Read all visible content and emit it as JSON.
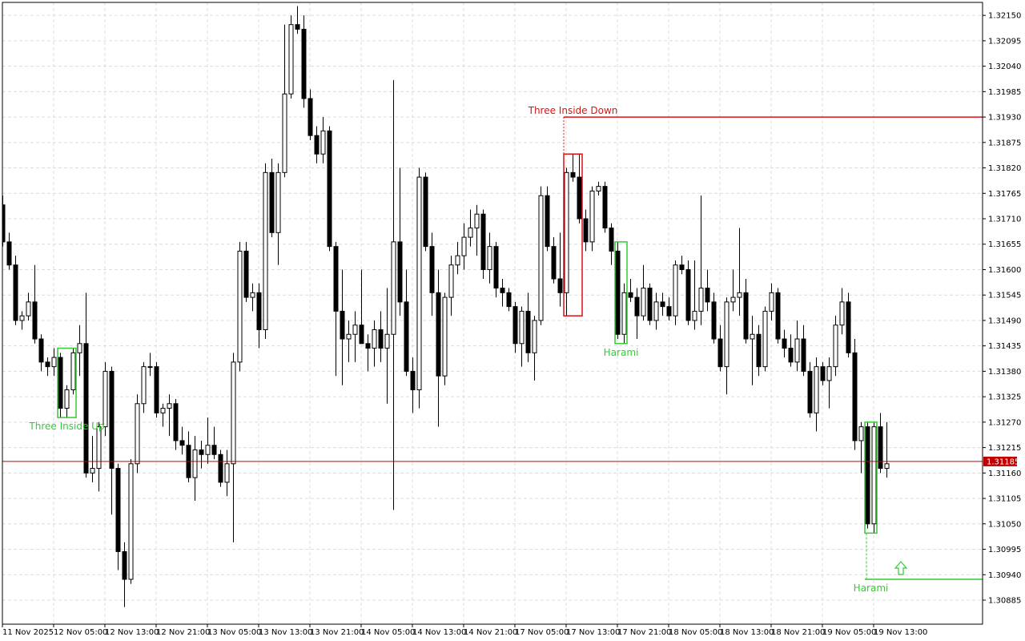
{
  "chart_data": {
    "type": "candlestick",
    "open": [
      1.3174,
      1.3166,
      1.3161,
      1.3149,
      1.315,
      1.3153,
      1.3145,
      1.314,
      1.3139,
      1.3141,
      1.313,
      1.3134,
      1.3142,
      1.3144,
      1.3116,
      1.3117,
      1.3126,
      1.3138,
      1.3117,
      1.3099,
      1.3093,
      1.3118,
      1.3131,
      1.3139,
      1.3139,
      1.3129,
      1.313,
      1.3131,
      1.3123,
      1.3122,
      1.3115,
      1.3121,
      1.312,
      1.3122,
      1.312,
      1.3114,
      1.3118,
      1.314,
      1.3164,
      1.3154,
      1.3155,
      1.3147,
      1.3181,
      1.3168,
      1.3181,
      1.3198,
      1.3213,
      1.3212,
      1.3197,
      1.3189,
      1.3185,
      1.319,
      1.3165,
      1.3151,
      1.3145,
      1.3146,
      1.3148,
      1.3144,
      1.3143,
      1.3147,
      1.3143,
      1.3146,
      1.3166,
      1.3153,
      1.3138,
      1.3134,
      1.318,
      1.3165,
      1.3155,
      1.3137,
      1.3154,
      1.3161,
      1.3163,
      1.3167,
      1.3169,
      1.3172,
      1.316,
      1.3165,
      1.3156,
      1.3155,
      1.3152,
      1.3144,
      1.3151,
      1.3142,
      1.3149,
      1.3176,
      1.3165,
      1.3158,
      1.3155,
      1.3181,
      1.318,
      1.3171,
      1.3166,
      1.3177,
      1.3178,
      1.3169,
      1.3164,
      1.3146,
      1.3155,
      1.3154,
      1.315,
      1.3156,
      1.3149,
      1.3153,
      1.3152,
      1.315,
      1.3161,
      1.316,
      1.3149,
      1.3151,
      1.3156,
      1.3153,
      1.3145,
      1.3139,
      1.3153,
      1.3154,
      1.3155,
      1.3145,
      1.3146,
      1.3139,
      1.3151,
      1.3155,
      1.3145,
      1.3143,
      1.314,
      1.3145,
      1.3138,
      1.3129,
      1.3139,
      1.3136,
      1.3139,
      1.3148,
      1.3153,
      1.3142,
      1.3123,
      1.3126,
      1.3105,
      1.3126,
      1.3117
    ],
    "high": [
      1.3176,
      1.3168,
      1.3163,
      1.3151,
      1.3155,
      1.3161,
      1.3146,
      1.3141,
      1.3143,
      1.3142,
      1.3135,
      1.3143,
      1.3148,
      1.3155,
      1.3124,
      1.3127,
      1.314,
      1.3139,
      1.3118,
      1.3101,
      1.3119,
      1.3133,
      1.314,
      1.3142,
      1.314,
      1.3131,
      1.3133,
      1.3132,
      1.3126,
      1.3125,
      1.3124,
      1.3123,
      1.3128,
      1.3126,
      1.3121,
      1.3121,
      1.3142,
      1.3166,
      1.3166,
      1.3157,
      1.3157,
      1.3183,
      1.3184,
      1.3183,
      1.3213,
      1.3215,
      1.3217,
      1.3215,
      1.3199,
      1.3191,
      1.3193,
      1.3191,
      1.3166,
      1.316,
      1.3149,
      1.3151,
      1.316,
      1.3146,
      1.3149,
      1.3151,
      1.3156,
      1.3201,
      1.3182,
      1.316,
      1.3141,
      1.3182,
      1.3181,
      1.3168,
      1.316,
      1.3155,
      1.3163,
      1.3166,
      1.317,
      1.3173,
      1.3174,
      1.3173,
      1.3168,
      1.3166,
      1.3158,
      1.3156,
      1.3153,
      1.3152,
      1.3155,
      1.315,
      1.3178,
      1.3178,
      1.3167,
      1.3168,
      1.3182,
      1.3185,
      1.3185,
      1.3173,
      1.3178,
      1.3179,
      1.3179,
      1.317,
      1.3166,
      1.3157,
      1.3158,
      1.3156,
      1.3161,
      1.3157,
      1.3155,
      1.3155,
      1.3154,
      1.3162,
      1.3163,
      1.3162,
      1.3162,
      1.3176,
      1.316,
      1.3155,
      1.3148,
      1.3154,
      1.316,
      1.3169,
      1.3158,
      1.315,
      1.3148,
      1.3152,
      1.3157,
      1.3156,
      1.3147,
      1.3146,
      1.3149,
      1.3148,
      1.314,
      1.3141,
      1.314,
      1.3141,
      1.315,
      1.3156,
      1.3155,
      1.3145,
      1.3127,
      1.3127,
      1.3127,
      1.3129,
      1.3127
    ],
    "low": [
      1.3165,
      1.316,
      1.3148,
      1.3147,
      1.3149,
      1.3144,
      1.3138,
      1.3137,
      1.3137,
      1.3128,
      1.3128,
      1.3133,
      1.3137,
      1.3115,
      1.3114,
      1.3112,
      1.3124,
      1.3107,
      1.3095,
      1.3087,
      1.3092,
      1.3116,
      1.3129,
      1.3137,
      1.3128,
      1.3126,
      1.3124,
      1.3121,
      1.312,
      1.3114,
      1.311,
      1.3117,
      1.3118,
      1.3119,
      1.3113,
      1.3111,
      1.3101,
      1.3138,
      1.3153,
      1.3151,
      1.3143,
      1.3145,
      1.3167,
      1.3161,
      1.318,
      1.3197,
      1.3211,
      1.3195,
      1.3188,
      1.3183,
      1.3183,
      1.3164,
      1.3137,
      1.3135,
      1.314,
      1.314,
      1.3144,
      1.3138,
      1.3139,
      1.314,
      1.3131,
      1.3108,
      1.315,
      1.3137,
      1.3129,
      1.313,
      1.3164,
      1.315,
      1.3126,
      1.3135,
      1.315,
      1.3159,
      1.316,
      1.3165,
      1.3163,
      1.3158,
      1.3157,
      1.3154,
      1.3152,
      1.3151,
      1.3142,
      1.3139,
      1.314,
      1.3136,
      1.3148,
      1.3164,
      1.3157,
      1.3152,
      1.315,
      1.3179,
      1.317,
      1.3164,
      1.3164,
      1.3176,
      1.3168,
      1.3161,
      1.3145,
      1.3144,
      1.3153,
      1.3145,
      1.3149,
      1.3148,
      1.3147,
      1.315,
      1.3149,
      1.3148,
      1.3159,
      1.3148,
      1.3147,
      1.3148,
      1.3151,
      1.3144,
      1.3138,
      1.3133,
      1.3151,
      1.315,
      1.3144,
      1.3135,
      1.3137,
      1.3138,
      1.3149,
      1.3144,
      1.3141,
      1.3139,
      1.3138,
      1.3137,
      1.3128,
      1.3125,
      1.3135,
      1.313,
      1.3137,
      1.3146,
      1.3141,
      1.3121,
      1.3116,
      1.3104,
      1.3103,
      1.3116,
      1.3115
    ],
    "close": [
      1.3166,
      1.3161,
      1.3149,
      1.315,
      1.3153,
      1.3145,
      1.314,
      1.3139,
      1.3141,
      1.313,
      1.3134,
      1.3142,
      1.3144,
      1.3116,
      1.3117,
      1.3126,
      1.3138,
      1.3117,
      1.3099,
      1.3093,
      1.3118,
      1.3131,
      1.3139,
      1.3139,
      1.3129,
      1.313,
      1.3131,
      1.3123,
      1.3122,
      1.3115,
      1.3121,
      1.312,
      1.3122,
      1.312,
      1.3114,
      1.3118,
      1.314,
      1.3164,
      1.3154,
      1.3155,
      1.3147,
      1.3181,
      1.3168,
      1.3181,
      1.3198,
      1.3213,
      1.3212,
      1.3197,
      1.3189,
      1.3185,
      1.319,
      1.3165,
      1.3151,
      1.3145,
      1.3146,
      1.3148,
      1.3144,
      1.3143,
      1.3147,
      1.3143,
      1.3146,
      1.3166,
      1.3153,
      1.3138,
      1.3134,
      1.318,
      1.3165,
      1.3155,
      1.3137,
      1.3154,
      1.3161,
      1.3163,
      1.3167,
      1.3169,
      1.3172,
      1.316,
      1.3165,
      1.3156,
      1.3155,
      1.3152,
      1.3144,
      1.3151,
      1.3142,
      1.3149,
      1.3176,
      1.3165,
      1.3158,
      1.3155,
      1.3181,
      1.318,
      1.3171,
      1.3166,
      1.3177,
      1.3178,
      1.3169,
      1.3164,
      1.3146,
      1.3155,
      1.3154,
      1.315,
      1.3156,
      1.3149,
      1.3153,
      1.3152,
      1.315,
      1.3161,
      1.316,
      1.3149,
      1.3151,
      1.3156,
      1.3153,
      1.3145,
      1.3139,
      1.3153,
      1.3154,
      1.3155,
      1.3145,
      1.3146,
      1.3139,
      1.3151,
      1.3155,
      1.3145,
      1.3143,
      1.314,
      1.3145,
      1.3138,
      1.3129,
      1.3139,
      1.3136,
      1.3139,
      1.3148,
      1.3153,
      1.3142,
      1.3123,
      1.3126,
      1.3105,
      1.3126,
      1.3117,
      1.3118
    ],
    "xlim": [
      0,
      153
    ],
    "xticks": [
      {
        "value": 0,
        "label": "11 Nov 2025"
      },
      {
        "value": 8,
        "label": "12 Nov 05:00"
      },
      {
        "value": 16,
        "label": "12 Nov 13:00"
      },
      {
        "value": 24,
        "label": "12 Nov 21:00"
      },
      {
        "value": 32,
        "label": "13 Nov 05:00"
      },
      {
        "value": 40,
        "label": "13 Nov 13:00"
      },
      {
        "value": 48,
        "label": "13 Nov 21:00"
      },
      {
        "value": 56,
        "label": "14 Nov 05:00"
      },
      {
        "value": 64,
        "label": "14 Nov 13:00"
      },
      {
        "value": 72,
        "label": "14 Nov 21:00"
      },
      {
        "value": 80,
        "label": "17 Nov 05:00"
      },
      {
        "value": 88,
        "label": "17 Nov 13:00"
      },
      {
        "value": 96,
        "label": "17 Nov 21:00"
      },
      {
        "value": 104,
        "label": "18 Nov 05:00"
      },
      {
        "value": 112,
        "label": "18 Nov 13:00"
      },
      {
        "value": 120,
        "label": "18 Nov 21:00"
      },
      {
        "value": 128,
        "label": "19 Nov 05:00"
      },
      {
        "value": 136,
        "label": "19 Nov 13:00"
      }
    ],
    "ylim": [
      1.30833,
      1.32178
    ],
    "yticks": [
      {
        "value": 1.3215,
        "label": "1.32150"
      },
      1.32095,
      {
        "value": 1.3204,
        "label": "1.32040"
      },
      1.31985,
      {
        "value": 1.3193,
        "label": "1.31930"
      },
      1.31875,
      {
        "value": 1.3182,
        "label": "1.31820"
      },
      1.31765,
      {
        "value": 1.3171,
        "label": "1.31710"
      },
      1.31655,
      {
        "value": 1.316,
        "label": "1.31600"
      },
      1.31545,
      {
        "value": 1.3149,
        "label": "1.31490"
      },
      1.31435,
      {
        "value": 1.3138,
        "label": "1.31380"
      },
      1.31325,
      {
        "value": 1.3127,
        "label": "1.31270"
      },
      1.31215,
      {
        "value": 1.3116,
        "label": "1.31160"
      },
      1.31105,
      {
        "value": 1.3105,
        "label": "1.31050"
      },
      1.30995,
      {
        "value": 1.3094,
        "label": "1.30940"
      },
      1.30885
    ],
    "grid": true,
    "current_price": 1.31185,
    "current_price_color": "#c00000",
    "up_color": "#ffffff",
    "down_color": "#000000",
    "patterns": [
      {
        "label": "Three Inside Up",
        "color": "#33cc33",
        "x": [
          9,
          11
        ]
      },
      {
        "label": "Three Inside Down",
        "color": "#dd1111",
        "x": [
          88,
          90
        ],
        "level": 1.3193
      },
      {
        "label": "Harami",
        "color": "#33cc33",
        "x": [
          96,
          97
        ]
      },
      {
        "label": "Harami",
        "color": "#33cc33",
        "x": [
          135,
          136
        ],
        "level": 1.3093
      }
    ]
  }
}
